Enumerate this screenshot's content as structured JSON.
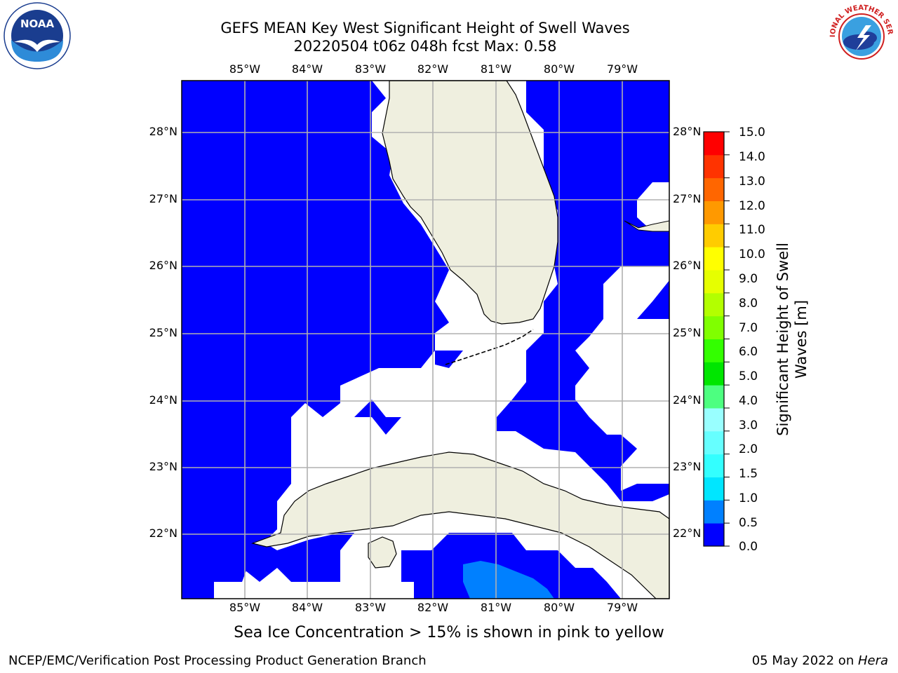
{
  "header": {
    "title_line1": "GEFS MEAN Key West Significant Height of Swell Waves",
    "title_line2": "20220504 t06z 048h fcst   Max: 0.58"
  },
  "logos": {
    "noaa": {
      "icon": "noaa-logo",
      "text": "NOAA"
    },
    "nws": {
      "icon": "national-weather-service-logo",
      "text": "NATIONAL WEATHER SERVICE"
    }
  },
  "map": {
    "lon_labels": [
      "85°W",
      "84°W",
      "83°W",
      "82°W",
      "81°W",
      "80°W",
      "79°W"
    ],
    "lat_labels": [
      "28°N",
      "27°N",
      "26°N",
      "25°N",
      "24°N",
      "23°N",
      "22°N"
    ],
    "colors": {
      "ocean_low": "#0000ff",
      "ocean_mid": "#0080ff",
      "land": "#efefdf",
      "grid": "#b0b0b0"
    }
  },
  "colorbar": {
    "title_line1": "Significant Height of Swell",
    "title_line2": "Waves [m]",
    "tick_labels": [
      "0.0",
      "0.5",
      "1.0",
      "1.5",
      "2.0",
      "3.0",
      "4.0",
      "5.0",
      "6.0",
      "7.0",
      "8.0",
      "9.0",
      "10.0",
      "11.0",
      "12.0",
      "13.0",
      "14.0",
      "15.0"
    ],
    "colors": [
      "#0000ff",
      "#0080ff",
      "#00e6ff",
      "#33ffff",
      "#66ffff",
      "#99ffff",
      "#4dff80",
      "#00e600",
      "#33ff00",
      "#80ff00",
      "#b3ff00",
      "#e6ff00",
      "#ffff00",
      "#ffcc00",
      "#ff9900",
      "#ff6600",
      "#ff3300",
      "#ff0000"
    ]
  },
  "notes": {
    "ice": "Sea Ice Concentration > 15% is shown in pink to yellow"
  },
  "footer": {
    "left": "NCEP/EMC/Verification Post Processing Product Generation Branch",
    "date": "05 May 2022 on ",
    "machine": "Hera"
  }
}
